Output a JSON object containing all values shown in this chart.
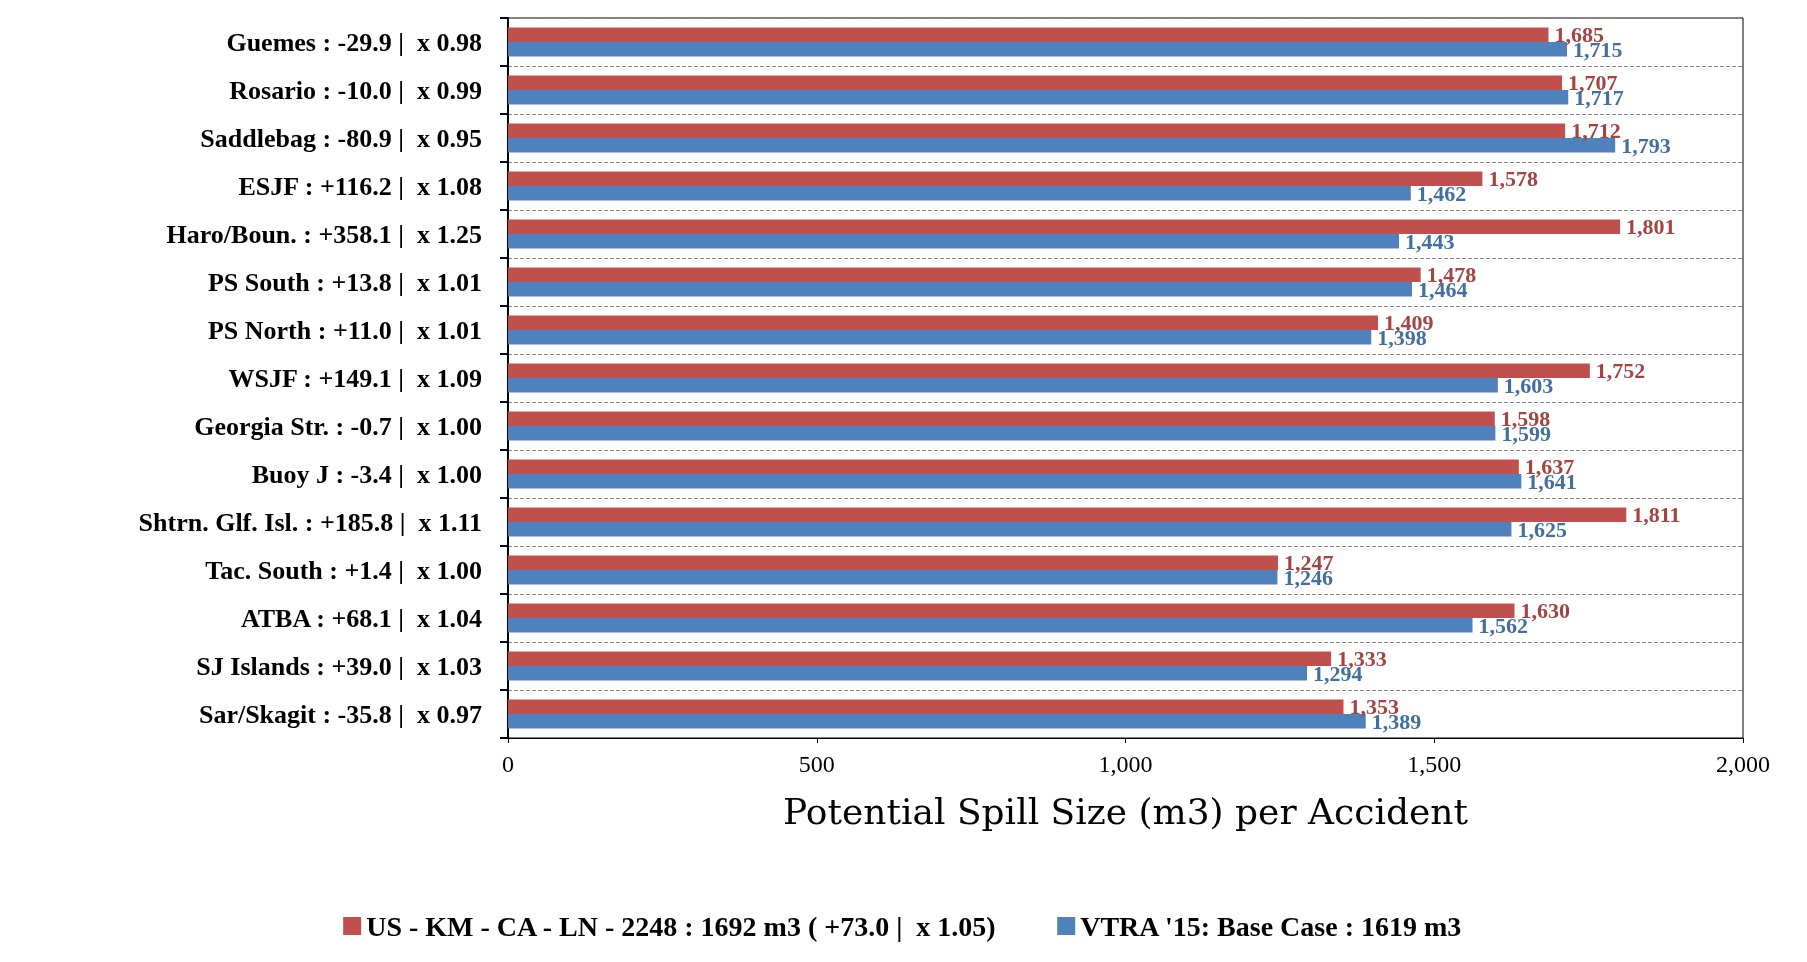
{
  "chart_data": {
    "type": "bar",
    "orientation": "horizontal",
    "xlabel": "Potential Spill Size (m3) per Accident",
    "categories": [
      "Guemes : -29.9 |  x 0.98",
      "Rosario : -10.0 |  x 0.99",
      "Saddlebag : -80.9 |  x 0.95",
      "ESJF : +116.2 |  x 1.08",
      "Haro/Boun. : +358.1 |  x 1.25",
      "PS South : +13.8 |  x 1.01",
      "PS North : +11.0 |  x 1.01",
      "WSJF : +149.1 |  x 1.09",
      "Georgia Str. : -0.7 |  x 1.00",
      "Buoy J : -3.4 |  x 1.00",
      "Shtrn. Glf. Isl. : +185.8 |  x 1.11",
      "Tac. South : +1.4 |  x 1.00",
      "ATBA : +68.1 |  x 1.04",
      "SJ Islands : +39.0 |  x 1.03",
      "Sar/Skagit : -35.8 |  x 0.97"
    ],
    "series": [
      {
        "name": "US - KM - CA - LN - 2248 : 1692 m3 ( +73.0 |  x 1.05)",
        "color": "#c0504d",
        "values": [
          1685,
          1707,
          1712,
          1578,
          1801,
          1478,
          1409,
          1752,
          1598,
          1637,
          1811,
          1247,
          1630,
          1333,
          1353
        ],
        "value_labels": [
          "1,685",
          "1,707",
          "1,712",
          "1,578",
          "1,801",
          "1,478",
          "1,409",
          "1,752",
          "1,598",
          "1,637",
          "1,811",
          "1,247",
          "1,630",
          "1,333",
          "1,353"
        ]
      },
      {
        "name": "VTRA '15: Base Case : 1619 m3",
        "color": "#4f81bd",
        "values": [
          1715,
          1717,
          1793,
          1462,
          1443,
          1464,
          1398,
          1603,
          1599,
          1641,
          1625,
          1246,
          1562,
          1294,
          1389
        ],
        "value_labels": [
          "1,715",
          "1,717",
          "1,793",
          "1,462",
          "1,443",
          "1,464",
          "1,398",
          "1,603",
          "1,599",
          "1,641",
          "1,625",
          "1,246",
          "1,562",
          "1,294",
          "1,389"
        ]
      }
    ],
    "xlim": [
      0,
      2000
    ],
    "xticks": [
      0,
      500,
      {
        "value": 1000,
        "label": "1,000"
      },
      {
        "value": 1500,
        "label": "1,500"
      },
      {
        "value": 2000,
        "label": "2,000"
      }
    ],
    "grid": "y",
    "legend": "bottom"
  }
}
